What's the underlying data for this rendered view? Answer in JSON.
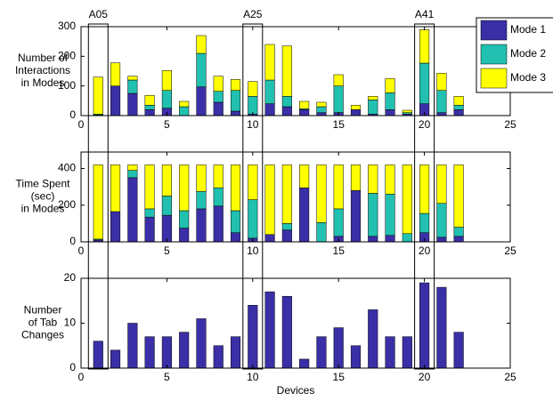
{
  "chart_data": [
    {
      "type": "stacked_bar",
      "ylabel": [
        "Number of",
        "Interactions",
        "in Modes"
      ],
      "x": [
        1,
        2,
        3,
        4,
        5,
        6,
        7,
        8,
        9,
        10,
        11,
        12,
        13,
        14,
        15,
        16,
        17,
        18,
        19,
        20,
        21,
        22
      ],
      "series": [
        {
          "name": "Mode 1",
          "color": "#3b2fa8",
          "values": [
            2,
            100,
            75,
            20,
            25,
            0,
            97,
            45,
            15,
            5,
            40,
            30,
            20,
            10,
            10,
            20,
            5,
            20,
            5,
            40,
            10,
            20
          ]
        },
        {
          "name": "Mode 2",
          "color": "#22c0b0",
          "values": [
            3,
            0,
            45,
            15,
            60,
            30,
            113,
            37,
            70,
            60,
            80,
            35,
            3,
            20,
            90,
            0,
            48,
            57,
            5,
            137,
            75,
            15
          ]
        },
        {
          "name": "Mode 3",
          "color": "#ffff00",
          "values": [
            125,
            78,
            13,
            33,
            67,
            18,
            60,
            51,
            37,
            50,
            120,
            170,
            25,
            15,
            38,
            15,
            12,
            48,
            8,
            113,
            58,
            30
          ]
        }
      ],
      "xlim": [
        0,
        25
      ],
      "xticks": [
        0,
        5,
        10,
        15,
        20,
        25
      ],
      "ylim": [
        0,
        300
      ],
      "yticks": [
        0,
        100,
        200,
        300
      ],
      "legend": "upper right",
      "annotations": [
        {
          "text": "A05",
          "x": 1
        },
        {
          "text": "A25",
          "x": 10
        },
        {
          "text": "A41",
          "x": 20
        }
      ]
    },
    {
      "type": "stacked_bar",
      "ylabel": [
        "Time Spent",
        "(sec)",
        "in Modes"
      ],
      "x": [
        1,
        2,
        3,
        4,
        5,
        6,
        7,
        8,
        9,
        10,
        11,
        12,
        13,
        14,
        15,
        16,
        17,
        18,
        19,
        20,
        21,
        22
      ],
      "series": [
        {
          "name": "Mode 1",
          "color": "#3b2fa8",
          "values": [
            10,
            165,
            350,
            135,
            145,
            75,
            180,
            195,
            50,
            20,
            40,
            65,
            295,
            0,
            30,
            280,
            30,
            35,
            0,
            50,
            25,
            30
          ]
        },
        {
          "name": "Mode 2",
          "color": "#22c0b0",
          "values": [
            5,
            0,
            40,
            45,
            105,
            95,
            95,
            100,
            120,
            210,
            0,
            35,
            0,
            105,
            150,
            0,
            235,
            225,
            45,
            105,
            185,
            50
          ]
        },
        {
          "name": "Mode 3",
          "color": "#ffff00",
          "values": [
            405,
            255,
            30,
            240,
            170,
            250,
            145,
            125,
            250,
            190,
            380,
            320,
            125,
            315,
            240,
            140,
            155,
            160,
            375,
            265,
            210,
            340
          ]
        }
      ],
      "xlim": [
        0,
        25
      ],
      "xticks": [
        0,
        5,
        10,
        15,
        20,
        25
      ],
      "ylim": [
        0,
        490
      ],
      "yticks": [
        0,
        200,
        400
      ]
    },
    {
      "type": "bar",
      "ylabel": [
        "Number",
        "of Tab",
        "Changes"
      ],
      "xlabel": "Devices",
      "x": [
        1,
        2,
        3,
        4,
        5,
        6,
        7,
        8,
        9,
        10,
        11,
        12,
        13,
        14,
        15,
        16,
        17,
        18,
        19,
        20,
        21,
        22
      ],
      "values": [
        6,
        4,
        10,
        7,
        7,
        8,
        11,
        5,
        7,
        14,
        17,
        16,
        2,
        7,
        9,
        5,
        13,
        7,
        7,
        19,
        18,
        8
      ],
      "color": "#3b2fa8",
      "xlim": [
        0,
        25
      ],
      "xticks": [
        0,
        5,
        10,
        15,
        20,
        25
      ],
      "ylim": [
        0,
        20
      ],
      "yticks": [
        0,
        10,
        20
      ]
    }
  ]
}
